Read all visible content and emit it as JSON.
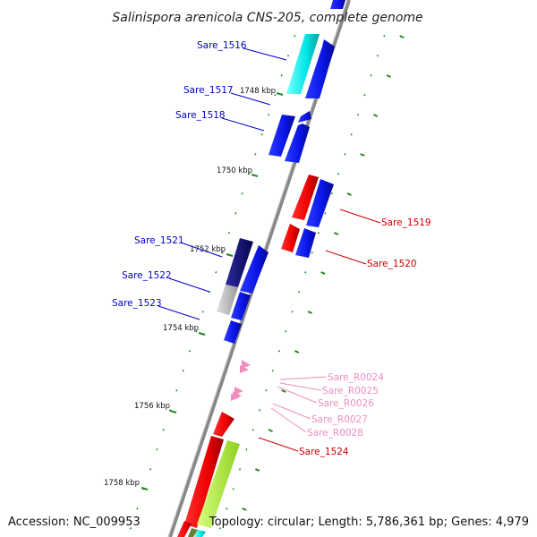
{
  "title": "Salinispora arenicola CNS-205, complete genome",
  "footer": {
    "accession": "Accession: NC_009953",
    "topology": "Topology: circular; Length: 5,786,361 bp; Genes: 4,979"
  },
  "ticks": [
    "1748 kbp",
    "1750 kbp",
    "1752 kbp",
    "1754 kbp",
    "1756 kbp",
    "1758 kbp"
  ],
  "genes": [
    {
      "label": "Sare_1516",
      "color": "#0000cc"
    },
    {
      "label": "Sare_1517",
      "color": "#0000cc"
    },
    {
      "label": "Sare_1518",
      "color": "#0000cc"
    },
    {
      "label": "Sare_1519",
      "color": "#cc0000"
    },
    {
      "label": "Sare_1520",
      "color": "#cc0000"
    },
    {
      "label": "Sare_1521",
      "color": "#0000cc"
    },
    {
      "label": "Sare_1522",
      "color": "#0000cc"
    },
    {
      "label": "Sare_1523",
      "color": "#0000cc"
    },
    {
      "label": "Sare_R0024",
      "color": "#f08cc0"
    },
    {
      "label": "Sare_R0025",
      "color": "#f08cc0"
    },
    {
      "label": "Sare_R0026",
      "color": "#f08cc0"
    },
    {
      "label": "Sare_R0027",
      "color": "#f08cc0"
    },
    {
      "label": "Sare_R0028",
      "color": "#f08cc0"
    },
    {
      "label": "Sare_1524",
      "color": "#cc0000"
    }
  ],
  "colors": {
    "backbone": "#888888",
    "gc_ticks": "#228822",
    "blue": "#0a14e6",
    "red": "#ee0000",
    "cyan": "#00e6e6",
    "navy": "#0a0a78",
    "grey": "#b4b4b4",
    "lime": "#b4f040",
    "pink": "#f08cc0"
  }
}
